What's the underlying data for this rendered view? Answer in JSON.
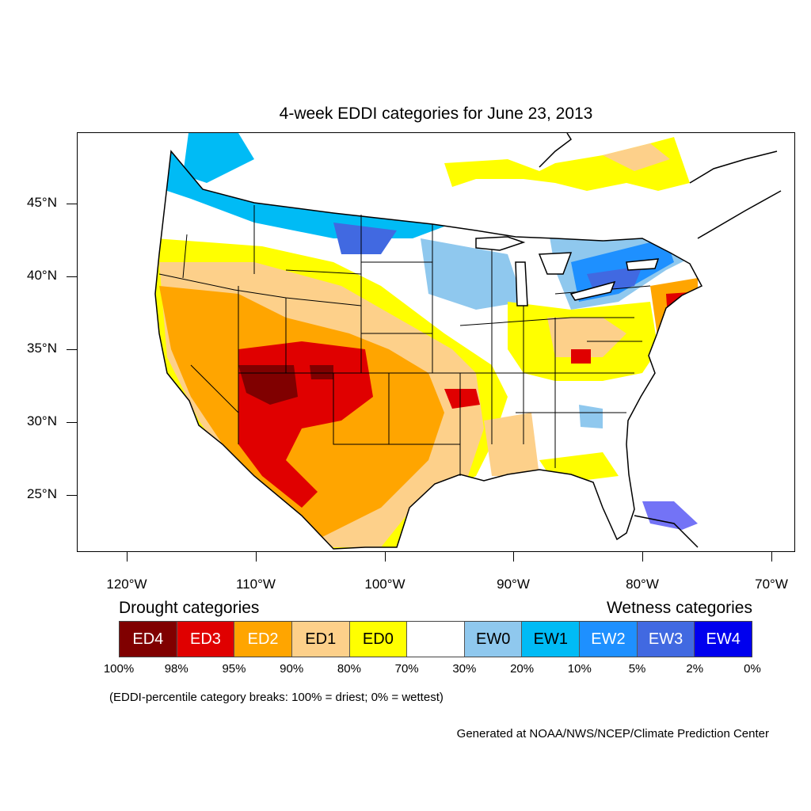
{
  "title": "4-week EDDI categories for June 23, 2013",
  "lat_labels": [
    "45°N",
    "40°N",
    "35°N",
    "30°N",
    "25°N"
  ],
  "lon_labels": [
    "120°W",
    "110°W",
    "100°W",
    "90°W",
    "80°W",
    "70°W"
  ],
  "legend": {
    "drought_heading": "Drought categories",
    "wetness_heading": "Wetness categories",
    "categories": [
      {
        "label": "ED4",
        "color": "#800000",
        "text_color": "#ffffff"
      },
      {
        "label": "ED3",
        "color": "#e00000",
        "text_color": "#ffffff"
      },
      {
        "label": "ED2",
        "color": "#ffa500",
        "text_color": "#ffffff"
      },
      {
        "label": "ED1",
        "color": "#fdd08a",
        "text_color": "#000000"
      },
      {
        "label": "ED0",
        "color": "#ffff00",
        "text_color": "#000000"
      },
      {
        "label": "",
        "color": "#ffffff",
        "text_color": "#000000"
      },
      {
        "label": "EW0",
        "color": "#8fc8ee",
        "text_color": "#000000"
      },
      {
        "label": "EW1",
        "color": "#00bbf5",
        "text_color": "#000000"
      },
      {
        "label": "EW2",
        "color": "#1e90ff",
        "text_color": "#ffffff"
      },
      {
        "label": "EW3",
        "color": "#4169e1",
        "text_color": "#ffffff"
      },
      {
        "label": "EW4",
        "color": "#0000ee",
        "text_color": "#ffffff"
      }
    ],
    "breaks": [
      "100%",
      "98%",
      "95%",
      "90%",
      "80%",
      "70%",
      "30%",
      "20%",
      "10%",
      "5%",
      "2%",
      "0%"
    ]
  },
  "note": "(EDDI-percentile category breaks: 100% = driest; 0% = wettest)",
  "credit": "Generated at NOAA/NWS/NCEP/Climate Prediction Center"
}
